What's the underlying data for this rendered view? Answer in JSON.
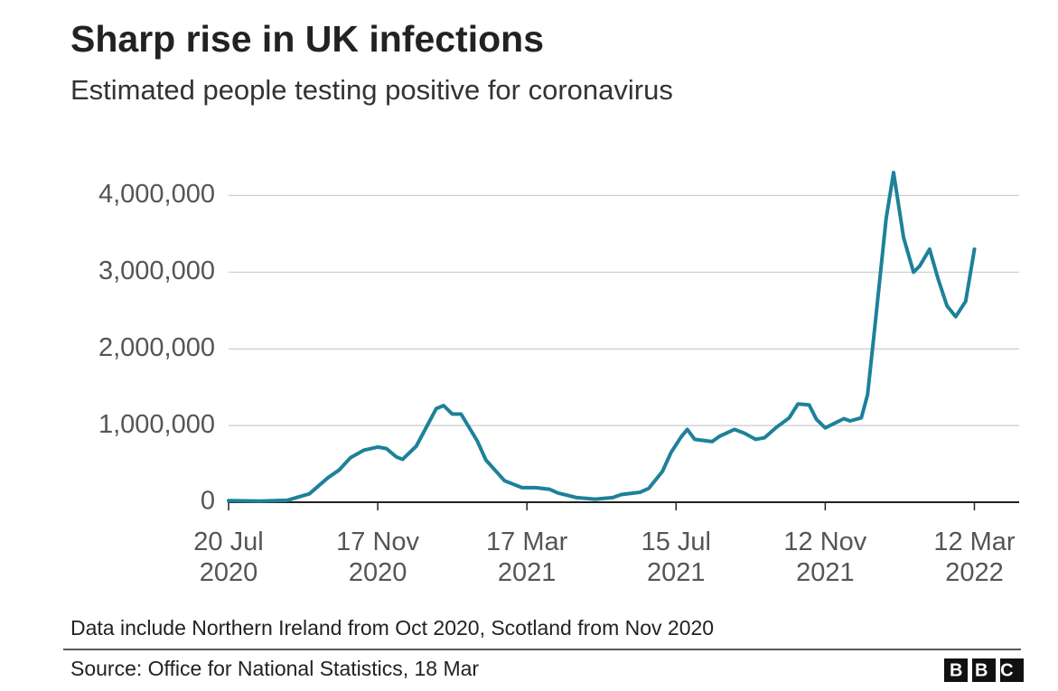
{
  "chart_data": {
    "type": "line",
    "title": "Sharp rise in UK infections",
    "subtitle": "Estimated people testing positive for coronavirus",
    "note": "Data include Northern Ireland from Oct 2020, Scotland from Nov 2020",
    "source": "Source: Office for National Statistics, 18 Mar",
    "logo": "BBC",
    "x": [
      "2020-07-20",
      "2020-08-14",
      "2020-09-05",
      "2020-09-23",
      "2020-10-08",
      "2020-10-17",
      "2020-10-26",
      "2020-11-06",
      "2020-11-17",
      "2020-11-24",
      "2020-12-02",
      "2020-12-07",
      "2020-12-18",
      "2021-01-03",
      "2021-01-09",
      "2021-01-16",
      "2021-01-23",
      "2021-02-05",
      "2021-02-12",
      "2021-02-27",
      "2021-03-13",
      "2021-03-24",
      "2021-04-04",
      "2021-04-11",
      "2021-04-26",
      "2021-05-11",
      "2021-05-25",
      "2021-06-01",
      "2021-06-16",
      "2021-06-23",
      "2021-07-04",
      "2021-07-11",
      "2021-07-19",
      "2021-07-24",
      "2021-07-30",
      "2021-08-13",
      "2021-08-19",
      "2021-08-31",
      "2021-09-08",
      "2021-09-17",
      "2021-09-24",
      "2021-10-04",
      "2021-10-14",
      "2021-10-21",
      "2021-10-30",
      "2021-11-05",
      "2021-11-12",
      "2021-11-27",
      "2021-12-02",
      "2021-12-11",
      "2021-12-16",
      "2021-12-22",
      "2021-12-31",
      "2022-01-06",
      "2022-01-14",
      "2022-01-22",
      "2022-01-27",
      "2022-02-04",
      "2022-02-11",
      "2022-02-18",
      "2022-02-25",
      "2022-03-05",
      "2022-03-12"
    ],
    "series": [
      {
        "name": "Estimated people testing positive",
        "color": "#1d8199",
        "values": [
          20000,
          15000,
          25000,
          110000,
          320000,
          420000,
          580000,
          680000,
          720000,
          700000,
          590000,
          560000,
          730000,
          1220000,
          1260000,
          1150000,
          1150000,
          800000,
          550000,
          280000,
          190000,
          190000,
          170000,
          120000,
          60000,
          40000,
          60000,
          100000,
          130000,
          180000,
          400000,
          650000,
          850000,
          950000,
          820000,
          790000,
          860000,
          950000,
          900000,
          820000,
          840000,
          980000,
          1100000,
          1280000,
          1270000,
          1080000,
          970000,
          1090000,
          1060000,
          1100000,
          1400000,
          2300000,
          3700000,
          4300000,
          3450000,
          3000000,
          3080000,
          3300000,
          2900000,
          2560000,
          2420000,
          2620000,
          3300000
        ]
      }
    ],
    "xlim": [
      "2020-07-20",
      "2022-04-17"
    ],
    "xticks": [
      {
        "value": "2020-07-20",
        "label": "20 Jul 2020"
      },
      {
        "value": "2020-11-17",
        "label": "17 Nov 2020"
      },
      {
        "value": "2021-03-17",
        "label": "17 Mar 2021"
      },
      {
        "value": "2021-07-15",
        "label": "15 Jul 2021"
      },
      {
        "value": "2021-11-12",
        "label": "12 Nov 2021"
      },
      {
        "value": "2022-03-12",
        "label": "12 Mar 2022"
      }
    ],
    "ylim": [
      0,
      4500000
    ],
    "yticks": [
      0,
      {
        "value": 1000000,
        "label": "1,000,000"
      },
      {
        "value": 2000000,
        "label": "2,000,000"
      },
      {
        "value": 3000000,
        "label": "3,000,000"
      },
      {
        "value": 4000000,
        "label": "4,000,000"
      }
    ],
    "grid": true
  }
}
